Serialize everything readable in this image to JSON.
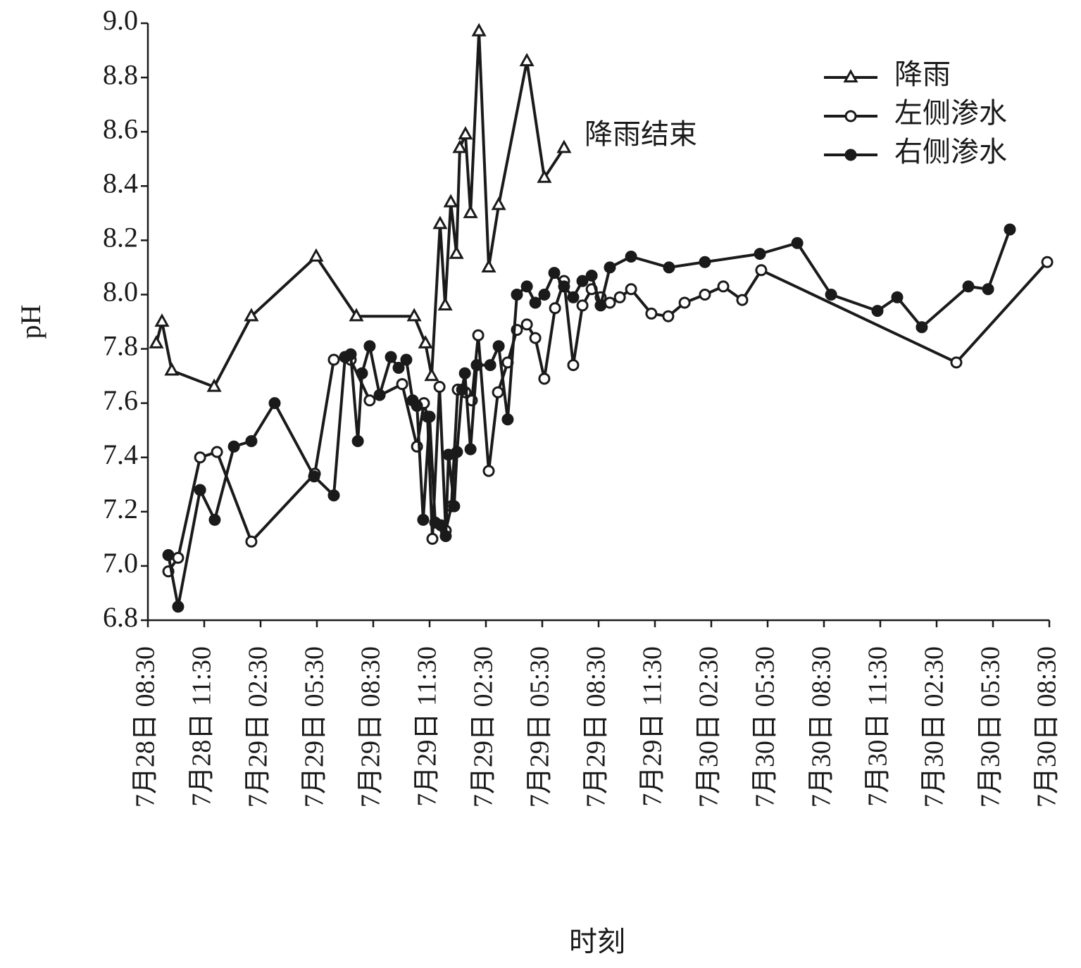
{
  "chart_data": {
    "type": "line",
    "y_label": "pH",
    "x_label": "时刻",
    "annotation": "降雨结束",
    "ylim": [
      6.8,
      9.0
    ],
    "yticks": [
      {
        "value": 6.8,
        "label": "6.8"
      },
      {
        "value": 7.0,
        "label": "7.0"
      },
      7.2,
      7.4,
      7.6,
      7.8,
      {
        "value": 8.0,
        "label": "8.0"
      },
      8.2,
      8.4,
      8.6,
      8.8,
      {
        "value": 9.0,
        "label": "9.0"
      }
    ],
    "xlim": [
      0,
      48
    ],
    "xticks": [
      {
        "value": 0,
        "label": "7月28日 08:30"
      },
      {
        "value": 3,
        "label": "7月28日 11:30"
      },
      {
        "value": 6,
        "label": "7月29日 02:30"
      },
      {
        "value": 9,
        "label": "7月29日 05:30"
      },
      {
        "value": 12,
        "label": "7月29日 08:30"
      },
      {
        "value": 15,
        "label": "7月29日 11:30"
      },
      {
        "value": 18,
        "label": "7月29日 02:30"
      },
      {
        "value": 21,
        "label": "7月29日 05:30"
      },
      {
        "value": 24,
        "label": "7月29日 08:30"
      },
      {
        "value": 27,
        "label": "7月29日 11:30"
      },
      {
        "value": 30,
        "label": "7月30日 02:30"
      },
      {
        "value": 33,
        "label": "7月30日 05:30"
      },
      {
        "value": 36,
        "label": "7月30日 08:30"
      },
      {
        "value": 39,
        "label": "7月30日 11:30"
      },
      {
        "value": 42,
        "label": "7月30日 02:30"
      },
      {
        "value": 45,
        "label": "7月30日 05:30"
      },
      {
        "value": 48,
        "label": "7月30日 08:30"
      }
    ],
    "series": [
      {
        "name": "降雨",
        "color": "#1a1a1a",
        "marker": "triangle-open",
        "x": [
          0.45,
          0.75,
          1.27,
          3.53,
          5.51,
          8.96,
          11.1,
          14.18,
          14.78,
          15.11,
          15.56,
          15.83,
          16.13,
          16.43,
          16.61,
          16.91,
          17.18,
          17.63,
          18.15,
          18.68,
          20.18,
          21.11,
          22.16
        ],
        "values": [
          7.82,
          7.9,
          7.72,
          7.66,
          7.92,
          8.14,
          7.92,
          7.92,
          7.82,
          7.7,
          8.26,
          7.96,
          8.34,
          8.15,
          8.54,
          8.59,
          8.3,
          8.97,
          8.1,
          8.33,
          8.86,
          8.43,
          8.54
        ]
      },
      {
        "name": "左侧渗水",
        "color": "#1a1a1a",
        "marker": "circle-open",
        "x": [
          1.09,
          1.61,
          2.78,
          3.68,
          5.51,
          8.89,
          9.9,
          10.5,
          10.8,
          11.81,
          13.54,
          14.33,
          14.7,
          14.89,
          15.15,
          15.53,
          15.86,
          16.16,
          16.5,
          16.91,
          17.25,
          17.59,
          18.15,
          18.64,
          19.16,
          19.65,
          20.18,
          20.63,
          21.11,
          21.68,
          22.16,
          22.65,
          23.14,
          23.63,
          24.11,
          24.6,
          25.13,
          25.73,
          26.81,
          27.71,
          28.58,
          29.66,
          30.64,
          31.65,
          32.66,
          43.05,
          47.89
        ],
        "values": [
          6.98,
          7.03,
          7.4,
          7.42,
          7.09,
          7.34,
          7.76,
          7.77,
          7.76,
          7.61,
          7.67,
          7.44,
          7.6,
          7.55,
          7.1,
          7.66,
          7.13,
          7.22,
          7.65,
          7.64,
          7.61,
          7.85,
          7.35,
          7.64,
          7.75,
          7.87,
          7.89,
          7.84,
          7.69,
          7.95,
          8.05,
          7.74,
          7.96,
          8.02,
          7.99,
          7.97,
          7.99,
          8.02,
          7.93,
          7.92,
          7.97,
          8.0,
          8.03,
          7.98,
          8.09,
          7.75,
          8.12
        ]
      },
      {
        "name": "右侧渗水",
        "color": "#1a1a1a",
        "marker": "circle-filled",
        "x": [
          1.09,
          1.61,
          2.78,
          3.56,
          4.58,
          5.51,
          6.75,
          8.85,
          9.9,
          10.5,
          10.8,
          11.18,
          11.4,
          11.81,
          12.34,
          12.94,
          13.35,
          13.76,
          14.1,
          14.33,
          14.66,
          15.0,
          15.3,
          15.6,
          15.86,
          16.01,
          16.31,
          16.46,
          16.73,
          16.88,
          17.18,
          17.51,
          18.23,
          18.68,
          19.16,
          19.65,
          20.18,
          20.63,
          21.11,
          21.64,
          22.16,
          22.65,
          23.14,
          23.63,
          24.11,
          24.6,
          25.73,
          27.75,
          29.66,
          32.59,
          34.58,
          36.38,
          38.85,
          39.9,
          41.21,
          43.69,
          44.74,
          45.9
        ],
        "values": [
          7.04,
          6.85,
          7.28,
          7.17,
          7.44,
          7.46,
          7.6,
          7.33,
          7.26,
          7.77,
          7.78,
          7.46,
          7.71,
          7.81,
          7.63,
          7.77,
          7.73,
          7.76,
          7.61,
          7.59,
          7.17,
          7.55,
          7.16,
          7.15,
          7.11,
          7.41,
          7.22,
          7.42,
          7.65,
          7.71,
          7.43,
          7.74,
          7.74,
          7.81,
          7.54,
          8.0,
          8.03,
          7.97,
          8.0,
          8.08,
          8.03,
          7.99,
          8.05,
          8.07,
          7.96,
          8.1,
          8.14,
          8.1,
          8.12,
          8.15,
          8.19,
          8.0,
          7.94,
          7.99,
          7.88,
          8.03,
          8.02,
          8.24
        ]
      }
    ]
  }
}
